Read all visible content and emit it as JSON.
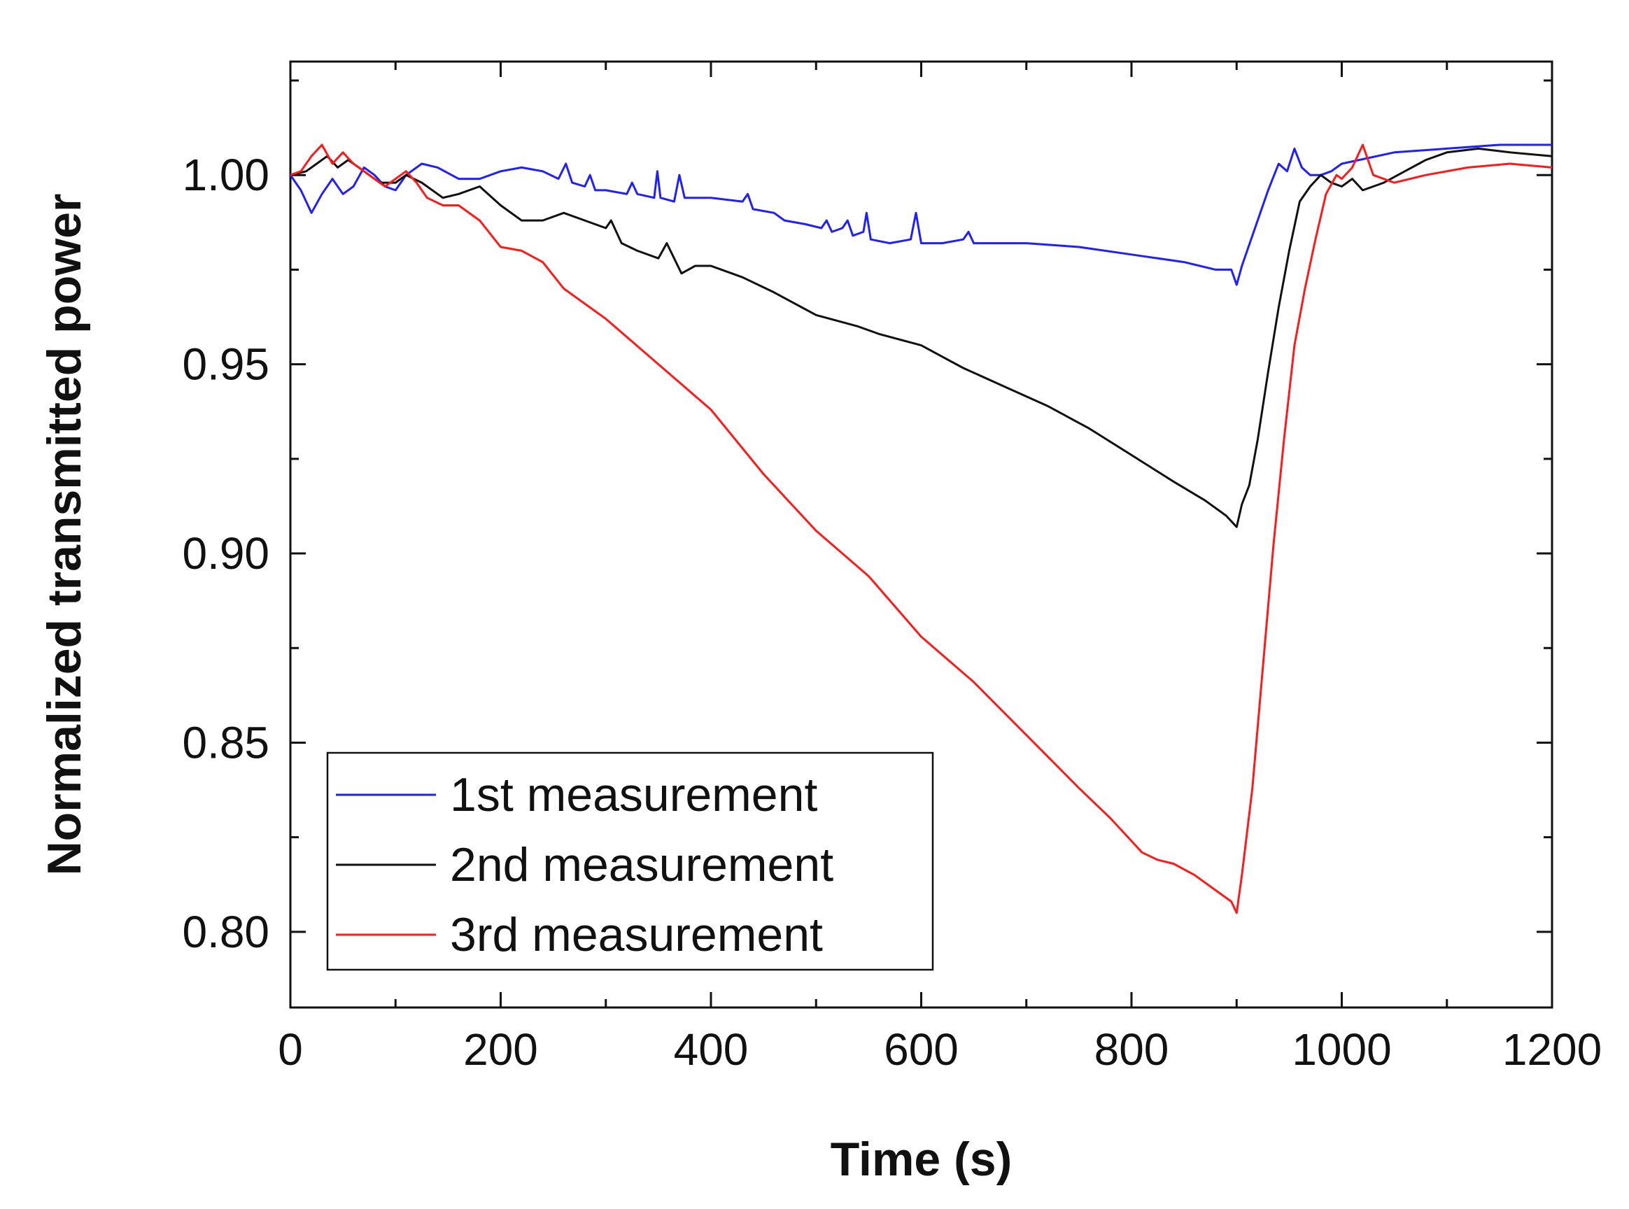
{
  "chart_data": {
    "type": "line",
    "title": "",
    "xlabel": "Time (s)",
    "ylabel": "Normalized transmitted power",
    "xlim": [
      0,
      1200
    ],
    "ylim": [
      0.78,
      1.03
    ],
    "x_ticks": [
      0,
      200,
      400,
      600,
      800,
      1000,
      1200
    ],
    "x_tick_labels": [
      "0",
      "200",
      "400",
      "600",
      "800",
      "1000",
      "1200"
    ],
    "y_ticks": [
      0.8,
      0.85,
      0.9,
      0.95,
      1.0
    ],
    "y_tick_labels": [
      "0.80",
      "0.85",
      "0.90",
      "0.95",
      "1.00"
    ],
    "grid": false,
    "legend_position": "bottom-left",
    "series": [
      {
        "name": "1st measurement",
        "color": "#1f1fff",
        "points": [
          [
            0,
            1.0
          ],
          [
            10,
            0.996
          ],
          [
            20,
            0.99
          ],
          [
            30,
            0.995
          ],
          [
            40,
            0.999
          ],
          [
            50,
            0.995
          ],
          [
            60,
            0.997
          ],
          [
            70,
            1.002
          ],
          [
            80,
            1.0
          ],
          [
            90,
            0.997
          ],
          [
            100,
            0.996
          ],
          [
            110,
            1.0
          ],
          [
            125,
            1.003
          ],
          [
            140,
            1.002
          ],
          [
            160,
            0.999
          ],
          [
            180,
            0.999
          ],
          [
            200,
            1.001
          ],
          [
            220,
            1.002
          ],
          [
            240,
            1.001
          ],
          [
            255,
            0.999
          ],
          [
            262,
            1.003
          ],
          [
            268,
            0.998
          ],
          [
            280,
            0.997
          ],
          [
            285,
            1.0
          ],
          [
            290,
            0.996
          ],
          [
            300,
            0.996
          ],
          [
            320,
            0.995
          ],
          [
            325,
            0.998
          ],
          [
            330,
            0.995
          ],
          [
            346,
            0.994
          ],
          [
            349,
            1.001
          ],
          [
            352,
            0.994
          ],
          [
            365,
            0.993
          ],
          [
            370,
            1.0
          ],
          [
            375,
            0.994
          ],
          [
            400,
            0.994
          ],
          [
            430,
            0.993
          ],
          [
            435,
            0.995
          ],
          [
            440,
            0.991
          ],
          [
            460,
            0.99
          ],
          [
            470,
            0.988
          ],
          [
            490,
            0.987
          ],
          [
            505,
            0.986
          ],
          [
            510,
            0.988
          ],
          [
            515,
            0.985
          ],
          [
            525,
            0.986
          ],
          [
            530,
            0.988
          ],
          [
            535,
            0.984
          ],
          [
            545,
            0.985
          ],
          [
            548,
            0.99
          ],
          [
            552,
            0.983
          ],
          [
            570,
            0.982
          ],
          [
            590,
            0.983
          ],
          [
            595,
            0.99
          ],
          [
            600,
            0.982
          ],
          [
            620,
            0.982
          ],
          [
            640,
            0.983
          ],
          [
            645,
            0.985
          ],
          [
            650,
            0.982
          ],
          [
            700,
            0.982
          ],
          [
            750,
            0.981
          ],
          [
            800,
            0.979
          ],
          [
            850,
            0.977
          ],
          [
            880,
            0.975
          ],
          [
            895,
            0.975
          ],
          [
            900,
            0.971
          ],
          [
            905,
            0.976
          ],
          [
            910,
            0.98
          ],
          [
            920,
            0.988
          ],
          [
            930,
            0.996
          ],
          [
            940,
            1.003
          ],
          [
            948,
            1.001
          ],
          [
            955,
            1.007
          ],
          [
            962,
            1.002
          ],
          [
            970,
            1.0
          ],
          [
            980,
            1.0
          ],
          [
            990,
            1.001
          ],
          [
            1000,
            1.003
          ],
          [
            1050,
            1.006
          ],
          [
            1100,
            1.007
          ],
          [
            1150,
            1.008
          ],
          [
            1200,
            1.008
          ]
        ]
      },
      {
        "name": "2nd measurement",
        "color": "#111111",
        "points": [
          [
            0,
            1.0
          ],
          [
            15,
            1.001
          ],
          [
            25,
            1.003
          ],
          [
            35,
            1.005
          ],
          [
            45,
            1.002
          ],
          [
            55,
            1.004
          ],
          [
            65,
            1.002
          ],
          [
            75,
            1.0
          ],
          [
            85,
            0.998
          ],
          [
            100,
            0.998
          ],
          [
            110,
            1.0
          ],
          [
            125,
            0.998
          ],
          [
            145,
            0.994
          ],
          [
            160,
            0.995
          ],
          [
            180,
            0.997
          ],
          [
            200,
            0.992
          ],
          [
            220,
            0.988
          ],
          [
            240,
            0.988
          ],
          [
            260,
            0.99
          ],
          [
            280,
            0.988
          ],
          [
            300,
            0.986
          ],
          [
            305,
            0.988
          ],
          [
            315,
            0.982
          ],
          [
            330,
            0.98
          ],
          [
            350,
            0.978
          ],
          [
            358,
            0.982
          ],
          [
            365,
            0.978
          ],
          [
            372,
            0.974
          ],
          [
            385,
            0.976
          ],
          [
            400,
            0.976
          ],
          [
            430,
            0.973
          ],
          [
            460,
            0.969
          ],
          [
            500,
            0.963
          ],
          [
            540,
            0.96
          ],
          [
            560,
            0.958
          ],
          [
            600,
            0.955
          ],
          [
            640,
            0.949
          ],
          [
            680,
            0.944
          ],
          [
            720,
            0.939
          ],
          [
            760,
            0.933
          ],
          [
            800,
            0.926
          ],
          [
            840,
            0.919
          ],
          [
            870,
            0.914
          ],
          [
            890,
            0.91
          ],
          [
            900,
            0.907
          ],
          [
            905,
            0.913
          ],
          [
            912,
            0.918
          ],
          [
            920,
            0.93
          ],
          [
            930,
            0.948
          ],
          [
            940,
            0.965
          ],
          [
            950,
            0.98
          ],
          [
            960,
            0.993
          ],
          [
            970,
            0.997
          ],
          [
            980,
            1.0
          ],
          [
            990,
            0.998
          ],
          [
            1000,
            0.997
          ],
          [
            1010,
            0.999
          ],
          [
            1020,
            0.996
          ],
          [
            1040,
            0.998
          ],
          [
            1060,
            1.001
          ],
          [
            1080,
            1.004
          ],
          [
            1100,
            1.006
          ],
          [
            1130,
            1.007
          ],
          [
            1160,
            1.006
          ],
          [
            1200,
            1.005
          ]
        ]
      },
      {
        "name": "3rd measurement",
        "color": "#ff1a1a",
        "points": [
          [
            0,
            1.0
          ],
          [
            10,
            1.001
          ],
          [
            20,
            1.005
          ],
          [
            30,
            1.008
          ],
          [
            40,
            1.003
          ],
          [
            50,
            1.006
          ],
          [
            60,
            1.003
          ],
          [
            70,
            1.001
          ],
          [
            80,
            0.999
          ],
          [
            90,
            0.997
          ],
          [
            100,
            0.999
          ],
          [
            110,
            1.001
          ],
          [
            120,
            0.998
          ],
          [
            130,
            0.994
          ],
          [
            145,
            0.992
          ],
          [
            160,
            0.992
          ],
          [
            180,
            0.988
          ],
          [
            200,
            0.981
          ],
          [
            220,
            0.98
          ],
          [
            240,
            0.977
          ],
          [
            260,
            0.97
          ],
          [
            300,
            0.962
          ],
          [
            350,
            0.95
          ],
          [
            400,
            0.938
          ],
          [
            450,
            0.921
          ],
          [
            500,
            0.906
          ],
          [
            550,
            0.894
          ],
          [
            600,
            0.878
          ],
          [
            650,
            0.866
          ],
          [
            700,
            0.852
          ],
          [
            750,
            0.838
          ],
          [
            780,
            0.83
          ],
          [
            800,
            0.824
          ],
          [
            810,
            0.821
          ],
          [
            825,
            0.819
          ],
          [
            840,
            0.818
          ],
          [
            860,
            0.815
          ],
          [
            880,
            0.811
          ],
          [
            895,
            0.808
          ],
          [
            900,
            0.805
          ],
          [
            905,
            0.815
          ],
          [
            915,
            0.838
          ],
          [
            925,
            0.87
          ],
          [
            935,
            0.902
          ],
          [
            945,
            0.93
          ],
          [
            955,
            0.955
          ],
          [
            965,
            0.97
          ],
          [
            975,
            0.983
          ],
          [
            985,
            0.995
          ],
          [
            995,
            1.0
          ],
          [
            1000,
            0.999
          ],
          [
            1010,
            1.002
          ],
          [
            1020,
            1.008
          ],
          [
            1030,
            1.0
          ],
          [
            1050,
            0.998
          ],
          [
            1080,
            1.0
          ],
          [
            1120,
            1.002
          ],
          [
            1160,
            1.003
          ],
          [
            1200,
            1.002
          ]
        ]
      }
    ]
  }
}
